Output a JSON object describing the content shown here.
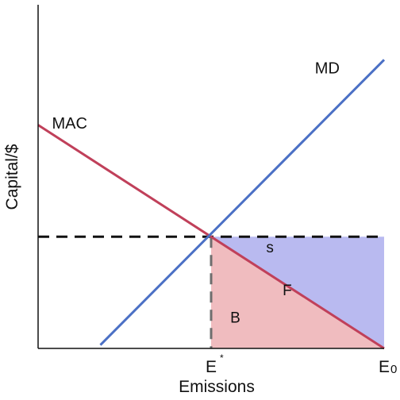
{
  "chart_data": {
    "type": "line",
    "title": "",
    "xlabel": "Emissions",
    "ylabel": "Capital/$",
    "xlim": [
      0,
      100
    ],
    "ylim": [
      0,
      100
    ],
    "series": [
      {
        "name": "MAC",
        "color": "#c0405a",
        "points": [
          [
            0,
            65
          ],
          [
            100,
            0
          ]
        ]
      },
      {
        "name": "MD",
        "color": "#4b70c5",
        "points": [
          [
            18,
            1
          ],
          [
            100,
            84
          ]
        ]
      }
    ],
    "intersection": {
      "label": "E",
      "label_superscript": "*",
      "x": 50,
      "y": 32.5
    },
    "x_ticks": [
      {
        "label": "E",
        "sup": "*",
        "x": 50
      },
      {
        "label": "E",
        "sub": "0",
        "x": 100
      }
    ],
    "regions": [
      {
        "label": "s",
        "color": "#b9baf0",
        "polygon": [
          [
            50,
            32.5
          ],
          [
            100,
            32.5
          ],
          [
            100,
            0
          ]
        ],
        "label_at": [
          67,
          28
        ]
      },
      {
        "label": "F",
        "color": "#b9baf0",
        "polygon": [],
        "label_at": [
          72,
          15.5
        ]
      },
      {
        "label": "B",
        "color": "#f0bcbf",
        "polygon": [
          [
            50,
            32.5
          ],
          [
            100,
            0
          ],
          [
            50,
            0
          ]
        ],
        "label_at": [
          57,
          7.5
        ]
      }
    ],
    "curve_labels": [
      {
        "text": "MAC",
        "at": [
          4,
          64
        ]
      },
      {
        "text": "MD",
        "at": [
          80,
          80
        ]
      }
    ],
    "grid": false,
    "legend": "none"
  }
}
